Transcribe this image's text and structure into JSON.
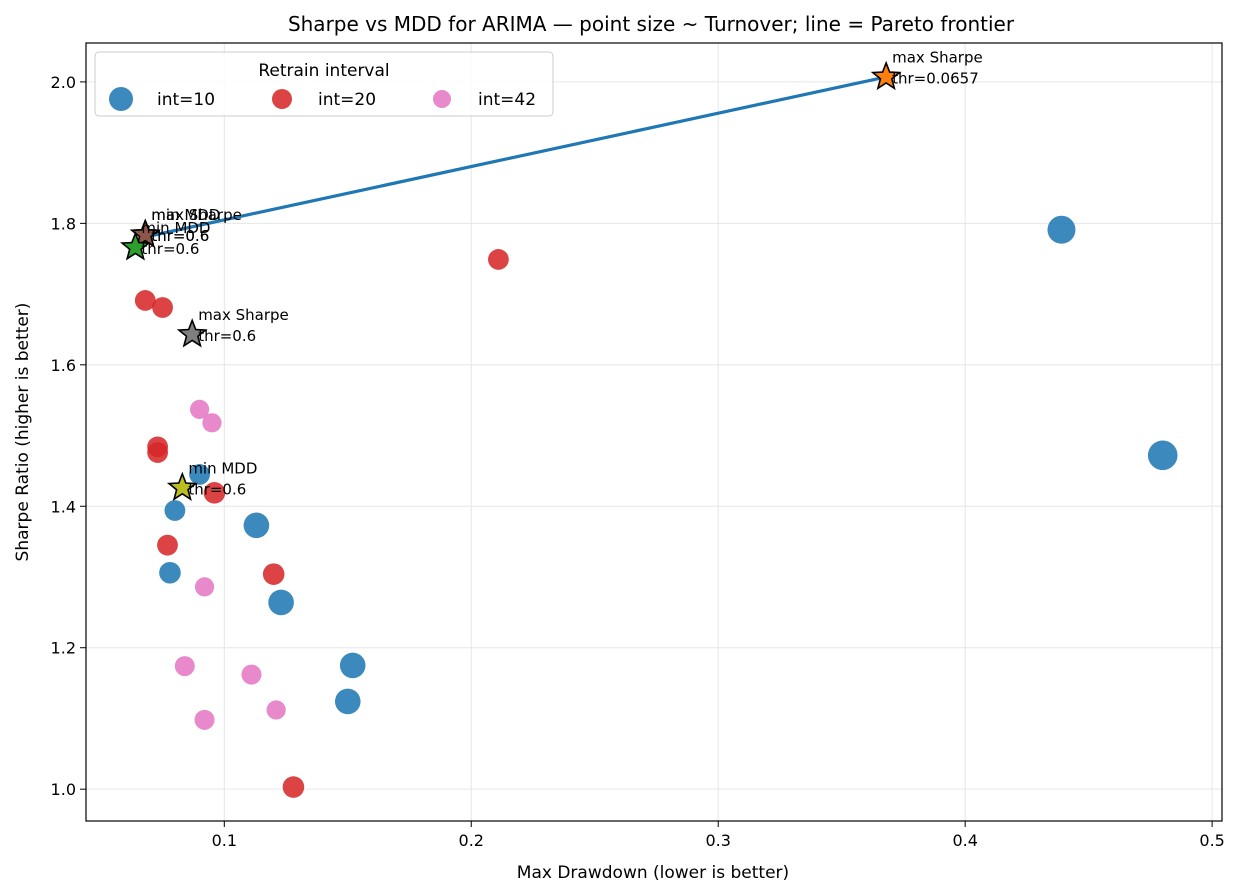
{
  "chart_data": {
    "type": "scatter",
    "title": "Sharpe vs MDD for ARIMA — point size ~ Turnover; line = Pareto frontier",
    "xlabel": "Max Drawdown (lower is better)",
    "ylabel": "Sharpe Ratio (higher is better)",
    "xlim": [
      0.044,
      0.504
    ],
    "ylim": [
      0.955,
      2.055
    ],
    "xticks": [
      {
        "value": 0.1,
        "label": "0.1"
      },
      {
        "value": 0.2,
        "label": "0.2"
      },
      {
        "value": 0.3,
        "label": "0.3"
      },
      {
        "value": 0.4,
        "label": "0.4"
      },
      {
        "value": 0.5,
        "label": "0.5"
      }
    ],
    "yticks": [
      {
        "value": 1.0,
        "label": "1.0"
      },
      {
        "value": 1.2,
        "label": "1.2"
      },
      {
        "value": 1.4,
        "label": "1.4"
      },
      {
        "value": 1.6,
        "label": "1.6"
      },
      {
        "value": 1.8,
        "label": "1.8"
      },
      {
        "value": 2.0,
        "label": "2.0"
      }
    ],
    "grid": true,
    "legend": {
      "title": "Retrain interval",
      "position": "top-left",
      "columns": 3
    },
    "series": [
      {
        "name": "int=10",
        "color": "#1f77b4",
        "points": [
          {
            "x": 0.439,
            "y": 1.791,
            "size": 1.0
          },
          {
            "x": 0.48,
            "y": 1.472,
            "size": 1.1
          },
          {
            "x": 0.09,
            "y": 1.445,
            "size": 0.55
          },
          {
            "x": 0.08,
            "y": 1.394,
            "size": 0.55
          },
          {
            "x": 0.113,
            "y": 1.373,
            "size": 0.85
          },
          {
            "x": 0.078,
            "y": 1.306,
            "size": 0.6
          },
          {
            "x": 0.123,
            "y": 1.264,
            "size": 0.85
          },
          {
            "x": 0.152,
            "y": 1.175,
            "size": 0.85
          },
          {
            "x": 0.15,
            "y": 1.124,
            "size": 0.85
          }
        ]
      },
      {
        "name": "int=20",
        "color": "#d62728",
        "points": [
          {
            "x": 0.211,
            "y": 1.749,
            "size": 0.55
          },
          {
            "x": 0.068,
            "y": 1.691,
            "size": 0.55
          },
          {
            "x": 0.075,
            "y": 1.681,
            "size": 0.55
          },
          {
            "x": 0.073,
            "y": 1.484,
            "size": 0.55
          },
          {
            "x": 0.073,
            "y": 1.476,
            "size": 0.55
          },
          {
            "x": 0.096,
            "y": 1.419,
            "size": 0.6
          },
          {
            "x": 0.077,
            "y": 1.345,
            "size": 0.55
          },
          {
            "x": 0.12,
            "y": 1.304,
            "size": 0.6
          },
          {
            "x": 0.128,
            "y": 1.003,
            "size": 0.6
          }
        ]
      },
      {
        "name": "int=42",
        "color": "#e377c2",
        "points": [
          {
            "x": 0.09,
            "y": 1.537,
            "size": 0.45
          },
          {
            "x": 0.095,
            "y": 1.518,
            "size": 0.45
          },
          {
            "x": 0.092,
            "y": 1.286,
            "size": 0.45
          },
          {
            "x": 0.084,
            "y": 1.174,
            "size": 0.5
          },
          {
            "x": 0.111,
            "y": 1.162,
            "size": 0.5
          },
          {
            "x": 0.121,
            "y": 1.112,
            "size": 0.45
          },
          {
            "x": 0.092,
            "y": 1.098,
            "size": 0.5
          }
        ]
      }
    ],
    "pareto_frontier": {
      "color": "#1f77b4",
      "points": [
        {
          "x": 0.064,
          "y": 1.766
        },
        {
          "x": 0.065,
          "y": 1.775
        },
        {
          "x": 0.067,
          "y": 1.78
        },
        {
          "x": 0.368,
          "y": 2.007
        }
      ]
    },
    "highlights": [
      {
        "x": 0.368,
        "y": 2.007,
        "color": "#ff7f0e",
        "lines": [
          "max Sharpe",
          "thr=0.0657"
        ]
      },
      {
        "x": 0.068,
        "y": 1.784,
        "color": "#8c564b",
        "lines": [
          "max Sharpe",
          "thr=0.6"
        ]
      },
      {
        "x": 0.068,
        "y": 1.784,
        "color": "#8c564b",
        "lines": [
          "min MDD",
          "thr=0.6"
        ]
      },
      {
        "x": 0.064,
        "y": 1.766,
        "color": "#2ca02c",
        "lines": [
          "min MDD",
          "thr=0.6"
        ]
      },
      {
        "x": 0.087,
        "y": 1.643,
        "color": "#7f7f7f",
        "lines": [
          "max Sharpe",
          "thr=0.6"
        ]
      },
      {
        "x": 0.083,
        "y": 1.426,
        "color": "#bcbd22",
        "lines": [
          "min MDD",
          "thr=0.6"
        ]
      }
    ]
  }
}
